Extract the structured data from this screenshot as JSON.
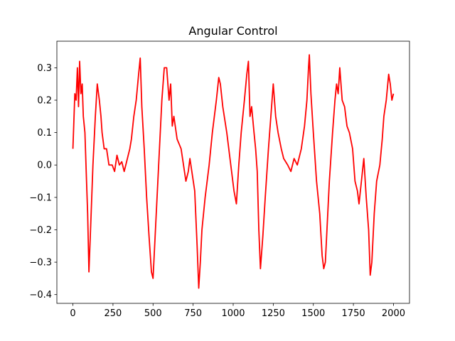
{
  "chart_data": {
    "type": "line",
    "title": "Angular Control",
    "x": [
      0,
      5,
      12,
      20,
      28,
      35,
      42,
      50,
      58,
      65,
      75,
      85,
      92,
      100,
      110,
      125,
      140,
      152,
      165,
      175,
      182,
      195,
      210,
      225,
      245,
      260,
      275,
      290,
      305,
      320,
      340,
      355,
      365,
      380,
      395,
      410,
      420,
      430,
      445,
      460,
      475,
      490,
      500,
      505,
      515,
      530,
      545,
      555,
      570,
      585,
      600,
      610,
      620,
      630,
      650,
      675,
      690,
      705,
      720,
      730,
      745,
      760,
      775,
      785,
      795,
      805,
      825,
      850,
      870,
      895,
      910,
      920,
      935,
      960,
      985,
      1005,
      1020,
      1035,
      1050,
      1070,
      1085,
      1095,
      1105,
      1115,
      1130,
      1140,
      1150,
      1160,
      1170,
      1185,
      1200,
      1220,
      1235,
      1250,
      1265,
      1280,
      1300,
      1315,
      1340,
      1360,
      1380,
      1400,
      1425,
      1445,
      1460,
      1470,
      1475,
      1485,
      1500,
      1520,
      1540,
      1555,
      1565,
      1575,
      1585,
      1600,
      1620,
      1635,
      1645,
      1655,
      1665,
      1680,
      1695,
      1710,
      1725,
      1745,
      1760,
      1775,
      1785,
      1800,
      1815,
      1830,
      1845,
      1855,
      1865,
      1880,
      1895,
      1915,
      1930,
      1940,
      1955,
      1970,
      1980,
      1990,
      2000
    ],
    "values": [
      0.05,
      0.12,
      0.22,
      0.2,
      0.3,
      0.18,
      0.32,
      0.22,
      0.25,
      0.15,
      0.1,
      -0.05,
      -0.15,
      -0.33,
      -0.2,
      0.0,
      0.15,
      0.25,
      0.2,
      0.15,
      0.1,
      0.05,
      0.05,
      0.0,
      0.0,
      -0.02,
      0.03,
      0.0,
      0.01,
      -0.02,
      0.02,
      0.05,
      0.08,
      0.15,
      0.2,
      0.28,
      0.33,
      0.18,
      0.05,
      -0.1,
      -0.22,
      -0.33,
      -0.35,
      -0.3,
      -0.2,
      -0.05,
      0.1,
      0.2,
      0.3,
      0.3,
      0.2,
      0.25,
      0.12,
      0.15,
      0.08,
      0.05,
      0.0,
      -0.05,
      -0.02,
      0.02,
      -0.03,
      -0.08,
      -0.25,
      -0.38,
      -0.3,
      -0.2,
      -0.1,
      0.0,
      0.1,
      0.2,
      0.27,
      0.25,
      0.18,
      0.1,
      0.0,
      -0.08,
      -0.12,
      0.0,
      0.1,
      0.2,
      0.28,
      0.32,
      0.15,
      0.18,
      0.1,
      0.05,
      -0.02,
      -0.2,
      -0.32,
      -0.22,
      -0.1,
      0.05,
      0.15,
      0.25,
      0.15,
      0.1,
      0.05,
      0.02,
      0.0,
      -0.02,
      0.02,
      0.0,
      0.05,
      0.12,
      0.2,
      0.3,
      0.34,
      0.22,
      0.1,
      -0.05,
      -0.15,
      -0.28,
      -0.32,
      -0.3,
      -0.2,
      -0.05,
      0.1,
      0.2,
      0.25,
      0.22,
      0.3,
      0.2,
      0.18,
      0.12,
      0.1,
      0.05,
      -0.05,
      -0.08,
      -0.12,
      -0.05,
      0.02,
      -0.1,
      -0.2,
      -0.34,
      -0.3,
      -0.15,
      -0.05,
      0.0,
      0.08,
      0.15,
      0.2,
      0.28,
      0.25,
      0.2,
      0.22
    ],
    "color": "#ff0000",
    "xlim": [
      -100,
      2100
    ],
    "xticks": [
      0,
      250,
      500,
      750,
      1000,
      1250,
      1500,
      1750,
      2000
    ],
    "ylim": [
      -0.427,
      0.382
    ],
    "yticks": [
      {
        "value": -0.4,
        "label": "−0.4"
      },
      {
        "value": -0.3,
        "label": "−0.3"
      },
      {
        "value": -0.2,
        "label": "−0.2"
      },
      {
        "value": -0.1,
        "label": "−0.1"
      },
      {
        "value": 0,
        "label": "0.0"
      },
      {
        "value": 0.1,
        "label": "0.1"
      },
      {
        "value": 0.2,
        "label": "0.2"
      },
      {
        "value": 0.3,
        "label": "0.3"
      }
    ],
    "grid": false
  }
}
